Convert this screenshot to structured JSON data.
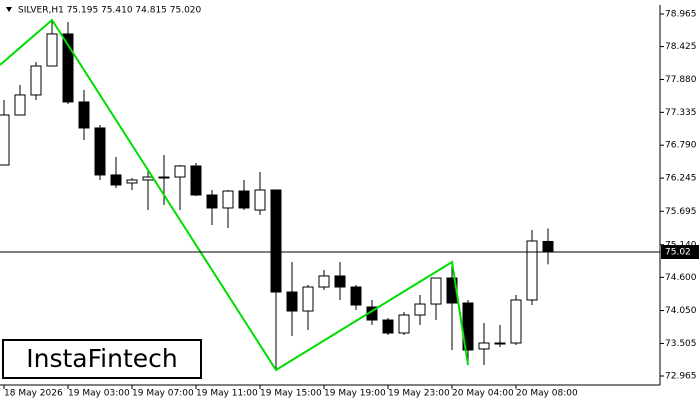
{
  "chart_data": {
    "type": "candlestick",
    "title": "SILVER,H1  75.195 75.410 74.815 75.020",
    "watermark": "InstaFintech",
    "categories": [
      "18 May 2026",
      null,
      null,
      null,
      "19 May 03:00",
      null,
      null,
      null,
      "19 May 07:00",
      null,
      null,
      null,
      "19 May 11:00",
      null,
      null,
      null,
      "19 May 15:00",
      null,
      null,
      null,
      "19 May 19:00",
      null,
      null,
      null,
      "19 May 23:00",
      null,
      null,
      null,
      "20 May 04:00",
      null,
      null,
      null,
      "20 May 08:00",
      null,
      null
    ],
    "series": [
      {
        "up_color": "#ffffff",
        "down_color": "#000000",
        "color": "#000000",
        "open": [
          76.462,
          77.291,
          77.623,
          78.103,
          78.634,
          77.507,
          77.076,
          76.297,
          76.164,
          76.214,
          76.263,
          76.263,
          76.446,
          75.965,
          75.75,
          76.031,
          75.716,
          76.048,
          74.357,
          74.042,
          74.44,
          74.623,
          74.44,
          74.109,
          73.893,
          73.678,
          73.976,
          74.158,
          74.589,
          74.175,
          73.413,
          73.512,
          73.512,
          74.225,
          75.195
        ],
        "high": [
          77.54,
          77.788,
          78.17,
          78.866,
          78.833,
          77.705,
          77.125,
          76.595,
          76.247,
          76.379,
          76.628,
          76.462,
          76.495,
          76.048,
          76.048,
          76.214,
          76.346,
          76.048,
          74.855,
          74.473,
          74.722,
          74.855,
          74.473,
          74.225,
          73.926,
          74.026,
          74.308,
          74.589,
          74.821,
          74.225,
          73.843,
          73.81,
          74.308,
          75.385,
          75.41
        ],
        "low": [
          76.462,
          77.291,
          77.54,
          78.103,
          77.473,
          76.877,
          76.214,
          76.081,
          76.048,
          75.716,
          75.799,
          75.716,
          75.949,
          75.468,
          75.418,
          75.716,
          75.634,
          73.064,
          73.628,
          73.727,
          74.39,
          74.225,
          74.059,
          73.81,
          73.645,
          73.645,
          73.81,
          73.893,
          73.396,
          73.147,
          73.147,
          73.446,
          73.479,
          74.142,
          74.815
        ],
        "close": [
          77.291,
          77.623,
          78.103,
          78.634,
          77.507,
          77.076,
          76.297,
          76.131,
          76.214,
          76.263,
          76.263,
          76.446,
          75.965,
          75.75,
          76.031,
          75.75,
          76.048,
          74.357,
          74.042,
          74.44,
          74.623,
          74.44,
          74.142,
          73.893,
          73.678,
          73.976,
          74.158,
          74.589,
          74.175,
          73.396,
          73.512,
          73.512,
          74.225,
          75.203,
          75.02
        ]
      }
    ],
    "ylim": [
      72.816,
      79.114
    ],
    "yticks": [
      78.965,
      78.425,
      {
        "value": 77.88,
        "label": "77.880"
      },
      77.335,
      {
        "value": 76.79,
        "label": "76.790"
      },
      76.245,
      75.695,
      {
        "value": 75.14,
        "label": "75.140"
      },
      {
        "value": 74.6,
        "label": "74.600"
      },
      {
        "value": 74.05,
        "label": "74.050"
      },
      73.505,
      72.965
    ],
    "pattern_color": "#00dd00"
  }
}
